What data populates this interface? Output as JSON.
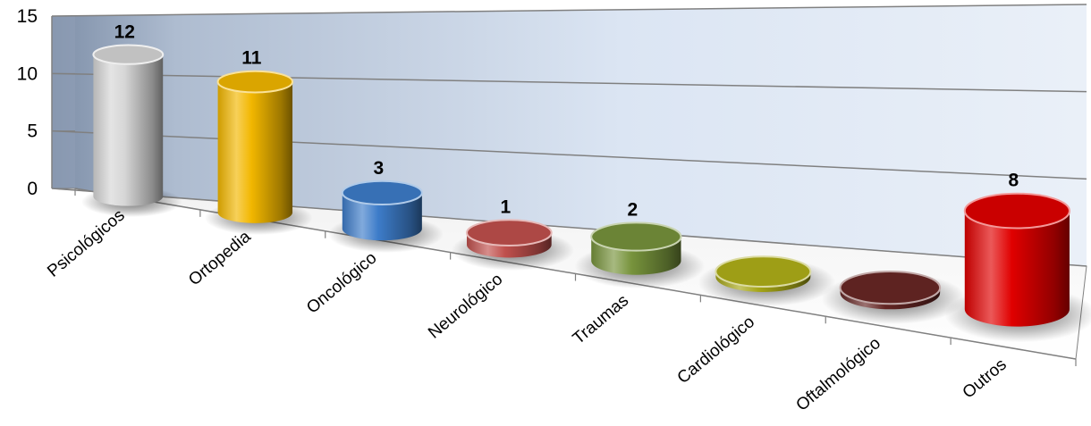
{
  "chart_data": {
    "type": "bar",
    "style": "3d-cylinder",
    "categories": [
      "Psicológicos",
      "Ortopedia",
      "Oncológico",
      "Neurológico",
      "Traumas",
      "Cardiológico",
      "Oftalmológico",
      "Outros"
    ],
    "values": [
      12,
      11,
      3,
      1,
      2,
      0,
      0,
      8
    ],
    "data_labels": [
      "12",
      "11",
      "3",
      "1",
      "2",
      "",
      "",
      "8"
    ],
    "colors": [
      "#d6d6d6",
      "#f2b700",
      "#3d7cc9",
      "#c0504d",
      "#77933c",
      "#a6a617",
      "#632523",
      "#e00000"
    ],
    "ylim": [
      0,
      15
    ],
    "yticks": [
      "0",
      "5",
      "10",
      "15"
    ],
    "grid": true,
    "legend": "none"
  }
}
